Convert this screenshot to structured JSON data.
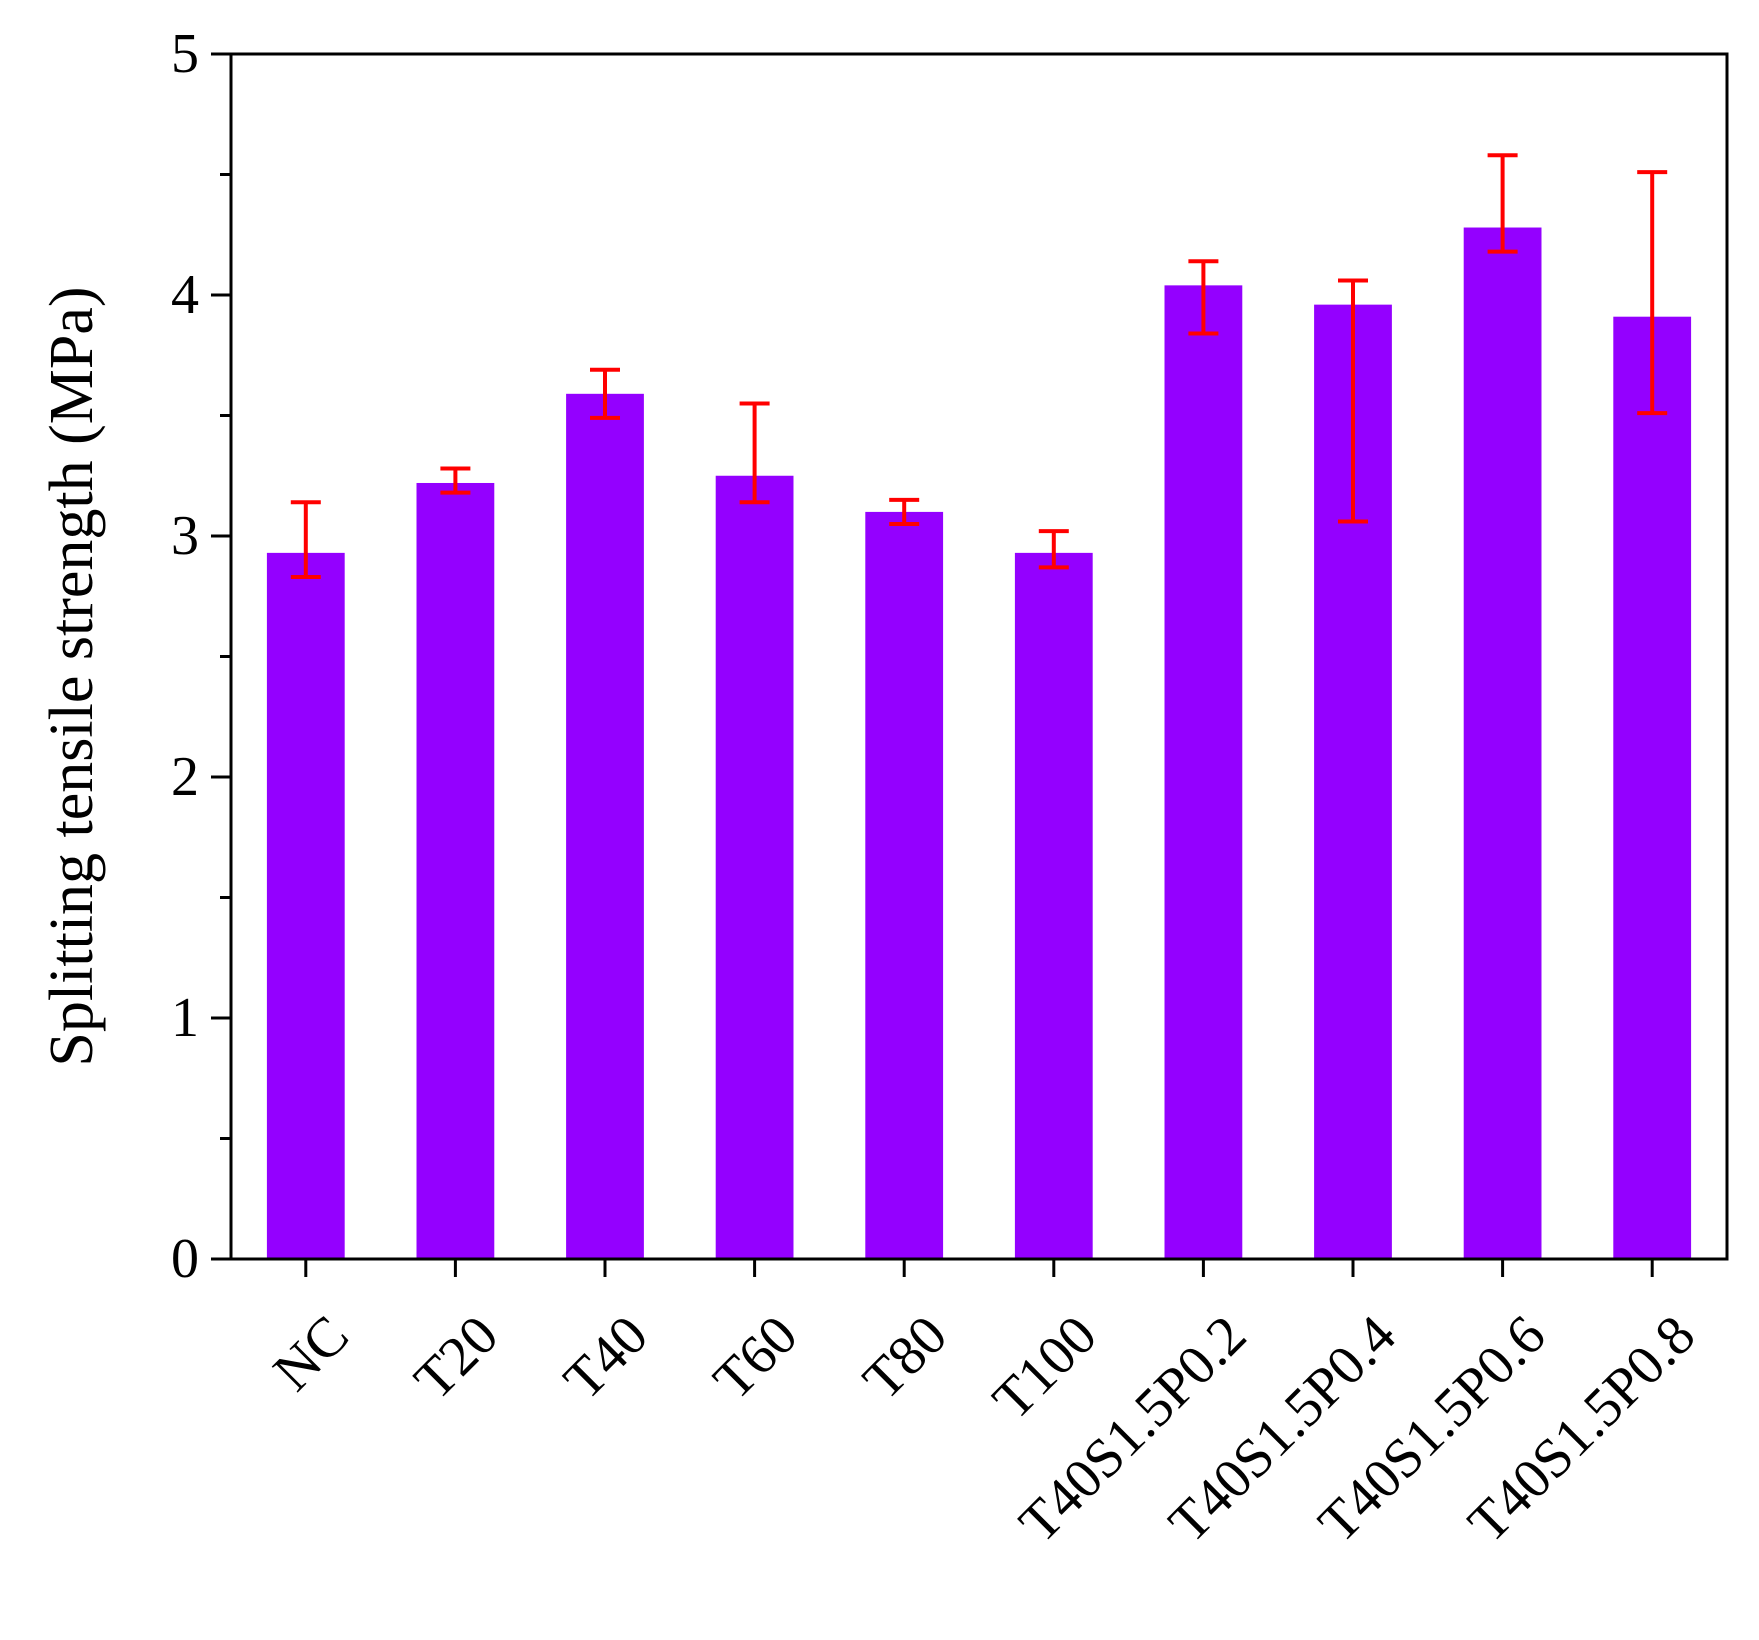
{
  "chart_data": {
    "type": "bar",
    "title": "",
    "xlabel": "",
    "ylabel": "Splitting tensile strength (MPa)",
    "ylim": [
      0,
      5
    ],
    "yticks": [
      "0",
      "1",
      "2",
      "3",
      "4",
      "5"
    ],
    "minor_tick_step": 0.5,
    "grid": false,
    "legend": "none",
    "categories": [
      "NC",
      "T20",
      "T40",
      "T60",
      "T80",
      "T100",
      "T40S1.5P0.2",
      "T40S1.5P0.4",
      "T40S1.5P0.6",
      "T40S1.5P0.8"
    ],
    "series": [
      {
        "name": "Splitting tensile strength",
        "values": [
          2.93,
          3.22,
          3.59,
          3.25,
          3.1,
          2.93,
          4.04,
          3.96,
          4.28,
          3.91
        ],
        "error_low": [
          2.83,
          3.18,
          3.49,
          3.14,
          3.05,
          2.87,
          3.84,
          3.06,
          4.18,
          3.51
        ],
        "error_high": [
          3.14,
          3.28,
          3.69,
          3.55,
          3.15,
          3.02,
          4.14,
          4.06,
          4.58,
          4.51
        ]
      }
    ],
    "colors": {
      "bar": "#9400FF",
      "error_bar": "#FF0000",
      "axis": "#000000"
    }
  }
}
